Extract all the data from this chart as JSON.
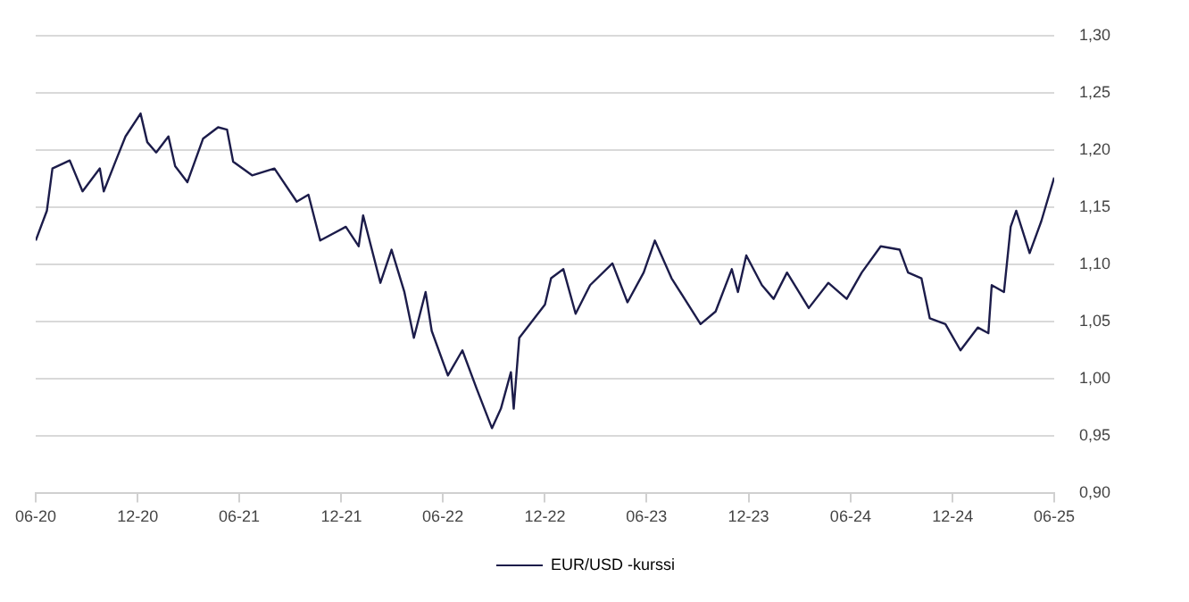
{
  "chart_data": {
    "type": "line",
    "legend": "bottom",
    "grid": "y",
    "marker": "none",
    "line_style": "solid",
    "x": [
      "2020-06-01",
      "2020-06-21",
      "2020-07-01",
      "2020-08-01",
      "2020-08-24",
      "2020-09-24",
      "2020-10-01",
      "2020-10-22",
      "2020-11-09",
      "2020-12-06",
      "2020-12-18",
      "2021-01-03",
      "2021-01-25",
      "2021-02-06",
      "2021-02-28",
      "2021-03-28",
      "2021-04-24",
      "2021-05-10",
      "2021-05-21",
      "2021-06-24",
      "2021-08-03",
      "2021-09-12",
      "2021-10-03",
      "2021-10-24",
      "2021-12-09",
      "2022-01-01",
      "2022-01-09",
      "2022-02-09",
      "2022-03-01",
      "2022-03-24",
      "2022-04-10",
      "2022-05-01",
      "2022-05-12",
      "2022-06-10",
      "2022-07-06",
      "2022-08-01",
      "2022-08-28",
      "2022-09-13",
      "2022-10-01",
      "2022-10-06",
      "2022-10-16",
      "2022-12-01",
      "2022-12-12",
      "2023-01-03",
      "2023-01-25",
      "2023-02-20",
      "2023-04-01",
      "2023-04-28",
      "2023-05-27",
      "2023-06-16",
      "2023-07-16",
      "2023-09-06",
      "2023-10-03",
      "2023-11-01",
      "2023-11-12",
      "2023-11-27",
      "2023-12-25",
      "2024-01-15",
      "2024-02-08",
      "2024-03-18",
      "2024-04-22",
      "2024-05-25",
      "2024-06-21",
      "2024-07-25",
      "2024-08-28",
      "2024-09-12",
      "2024-10-06",
      "2024-10-21",
      "2024-11-18",
      "2024-12-15",
      "2025-01-15",
      "2025-02-03",
      "2025-02-09",
      "2025-03-03",
      "2025-03-15",
      "2025-03-25",
      "2025-04-18",
      "2025-05-09",
      "2025-06-01"
    ],
    "series": [
      {
        "name": "EUR/USD -kurssi",
        "color": "#1c1c4a",
        "values": [
          1.121,
          1.147,
          1.184,
          1.191,
          1.164,
          1.184,
          1.164,
          1.19,
          1.212,
          1.232,
          1.207,
          1.198,
          1.212,
          1.186,
          1.172,
          1.21,
          1.22,
          1.218,
          1.19,
          1.178,
          1.184,
          1.155,
          1.161,
          1.121,
          1.133,
          1.116,
          1.143,
          1.084,
          1.113,
          1.076,
          1.036,
          1.076,
          1.042,
          1.003,
          1.025,
          0.991,
          0.957,
          0.974,
          1.006,
          0.974,
          1.036,
          1.065,
          1.088,
          1.096,
          1.057,
          1.082,
          1.101,
          1.067,
          1.093,
          1.121,
          1.088,
          1.048,
          1.059,
          1.096,
          1.076,
          1.108,
          1.082,
          1.07,
          1.093,
          1.062,
          1.084,
          1.07,
          1.093,
          1.116,
          1.113,
          1.093,
          1.088,
          1.053,
          1.048,
          1.025,
          1.045,
          1.04,
          1.082,
          1.076,
          1.133,
          1.147,
          1.11,
          1.138,
          1.176
        ]
      }
    ],
    "xlim": [
      "2020-06-01",
      "2025-06-01"
    ],
    "xticks": [
      {
        "value": "2020-06-01",
        "label": "06-20"
      },
      {
        "value": "2020-12-01",
        "label": "12-20"
      },
      {
        "value": "2021-06-01",
        "label": "06-21"
      },
      {
        "value": "2021-12-01",
        "label": "12-21"
      },
      {
        "value": "2022-06-01",
        "label": "06-22"
      },
      {
        "value": "2022-12-01",
        "label": "12-22"
      },
      {
        "value": "2023-06-01",
        "label": "06-23"
      },
      {
        "value": "2023-12-01",
        "label": "12-23"
      },
      {
        "value": "2024-06-01",
        "label": "06-24"
      },
      {
        "value": "2024-12-01",
        "label": "12-24"
      },
      {
        "value": "2025-06-01",
        "label": "06-25"
      }
    ],
    "ylim": [
      0.9,
      1.3
    ],
    "yticks": [
      {
        "value": 0.9,
        "label": "0,90"
      },
      {
        "value": 0.95,
        "label": "0,95"
      },
      {
        "value": 1.0,
        "label": "1,00"
      },
      {
        "value": 1.05,
        "label": "1,05"
      },
      {
        "value": 1.1,
        "label": "1,10"
      },
      {
        "value": 1.15,
        "label": "1,15"
      },
      {
        "value": 1.2,
        "label": "1,20"
      },
      {
        "value": 1.25,
        "label": "1,25"
      },
      {
        "value": 1.3,
        "label": "1,30"
      }
    ]
  }
}
